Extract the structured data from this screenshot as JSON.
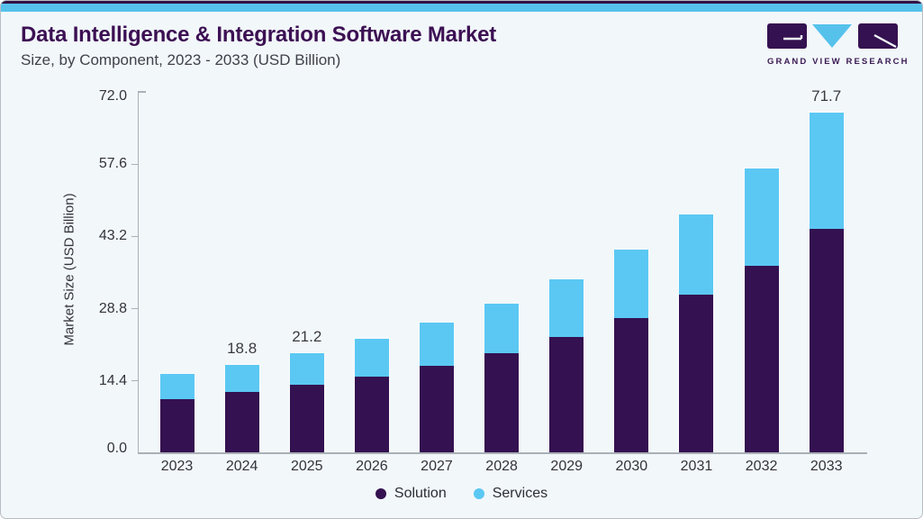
{
  "logo": {
    "text": "GRAND VIEW RESEARCH"
  },
  "colors": {
    "card_bg": "#f2f7fa",
    "top_strip_blue": "#56c2ec",
    "top_strip_dark": "#341245",
    "card_border": "#b7bdc2",
    "title": "#3c1053",
    "subtitle": "#41414b",
    "axis": "#a9b0b6",
    "tick_label": "#33333a",
    "bar_label": "#3a3a40",
    "legend_text": "#2e2e36",
    "logo_text": "#3a1a52",
    "solution": "#341150",
    "services": "#5bc8f3"
  },
  "chart_data": {
    "type": "bar",
    "stacked": true,
    "title": "Data Intelligence & Integration Software Market",
    "subtitle": "Size, by Component, 2023 - 2033 (USD Billion)",
    "xlabel": "",
    "ylabel": "Market Size (USD Billion)",
    "categories": [
      "2023",
      "2024",
      "2025",
      "2026",
      "2027",
      "2028",
      "2029",
      "2030",
      "2031",
      "2032",
      "2033"
    ],
    "series": [
      {
        "name": "Solution",
        "color": "#341150",
        "values": [
          11.6,
          13.0,
          14.5,
          16.2,
          18.6,
          21.2,
          24.5,
          28.6,
          33.4,
          39.5,
          47.2
        ]
      },
      {
        "name": "Services",
        "color": "#5bc8f3",
        "values": [
          5.2,
          5.8,
          6.7,
          8.0,
          9.0,
          10.3,
          12.1,
          14.3,
          16.8,
          20.4,
          24.5
        ]
      }
    ],
    "totals": [
      16.8,
      18.8,
      21.2,
      24.2,
      27.6,
      31.5,
      36.6,
      42.9,
      50.2,
      59.9,
      71.7
    ],
    "bar_labels": [
      "",
      "18.8",
      "21.2",
      "",
      "",
      "",
      "",
      "",
      "",
      "",
      "71.7"
    ],
    "yticks": [
      "0.0",
      "14.4",
      "28.8",
      "43.2",
      "57.6",
      "72.0"
    ],
    "ylim": [
      0,
      72
    ],
    "grid": false,
    "legend_position": "bottom"
  }
}
